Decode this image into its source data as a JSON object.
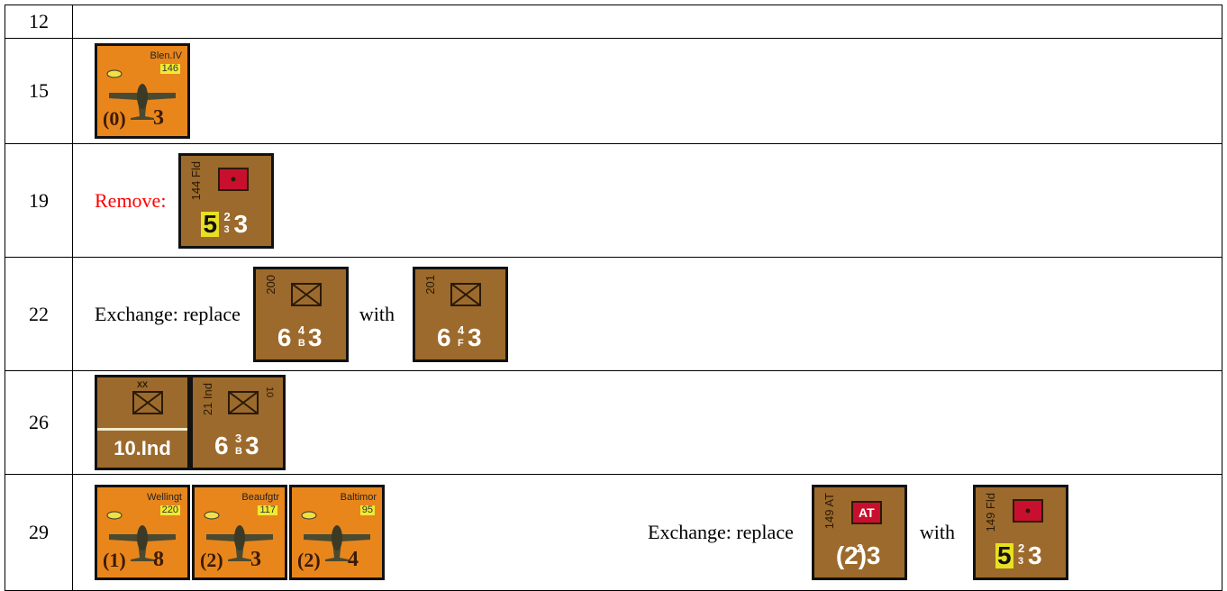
{
  "rows": [
    {
      "turn": "12",
      "items": []
    },
    {
      "turn": "15",
      "items": [
        {
          "icon": "plane",
          "color": "#e8861c",
          "top": "Blen.IV",
          "badge": "146",
          "left": "(0)",
          "right": "3"
        }
      ]
    },
    {
      "turn": "19",
      "items": [
        {
          "text": "Remove:",
          "color": "#ff0000"
        },
        {
          "icon": "artillery",
          "color": "#9c6a2c",
          "top": "144 Fld",
          "left": "5",
          "left_bg": "#e8e020",
          "mid_top": "2",
          "mid_bottom": "3",
          "right": "3"
        }
      ]
    },
    {
      "turn": "22",
      "items": [
        {
          "text": "Exchange: replace"
        },
        {
          "icon": "infantry",
          "color": "#9c6a2c",
          "top": "200",
          "left": "6",
          "mid_top": "4",
          "mid_bottom": "B",
          "right": "3"
        },
        {
          "text": "with"
        },
        {
          "icon": "infantry",
          "color": "#9c6a2c",
          "top": "201",
          "left": "6",
          "mid_top": "4",
          "mid_bottom": "F",
          "right": "3"
        }
      ]
    },
    {
      "turn": "26",
      "items": [
        {
          "icon": "infantry",
          "color": "#9c6a2c",
          "size": "XX",
          "label": "10.Ind"
        },
        {
          "icon": "infantry",
          "color": "#9c6a2c",
          "top": "21 Ind",
          "badge": "10",
          "left": "6",
          "mid_top": "3",
          "mid_bottom": "B",
          "right": "3"
        }
      ]
    },
    {
      "turn": "29",
      "items": [
        {
          "icon": "plane",
          "color": "#e8861c",
          "top": "Wellingt",
          "badge": "220",
          "left": "(1)",
          "right": "8"
        },
        {
          "icon": "plane",
          "color": "#e8861c",
          "top": "Beaufgtr",
          "badge": "117",
          "left": "(2)",
          "right": "3"
        },
        {
          "icon": "plane",
          "color": "#e8861c",
          "top": "Baltimor",
          "badge": "95",
          "left": "(2)",
          "right": "4"
        },
        {
          "text": "Exchange: replace"
        },
        {
          "icon": "antitank",
          "color": "#9c6a2c",
          "top": "149 AT",
          "symbol_text": "AT",
          "left": "(2)",
          "mid_top": "2",
          "right": "3"
        },
        {
          "text": "with"
        },
        {
          "icon": "artillery",
          "color": "#9c6a2c",
          "top": "149 Fld",
          "left": "5",
          "left_bg": "#e8e020",
          "mid_top": "2",
          "mid_bottom": "3",
          "right": "3"
        }
      ]
    }
  ]
}
